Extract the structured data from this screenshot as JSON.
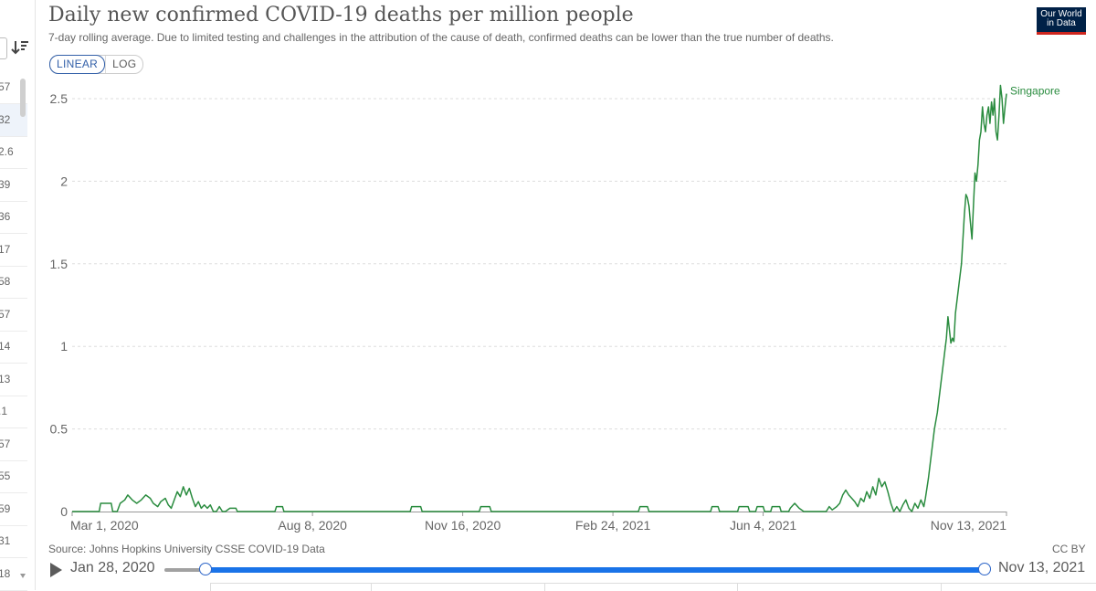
{
  "header": {
    "title": "Daily new confirmed COVID-19 deaths per million people",
    "subtitle": "7-day rolling average. Due to limited testing and challenges in the attribution of the cause of death, confirmed deaths can be lower than the true number of deaths.",
    "logo_line1": "Our World",
    "logo_line2": "in Data"
  },
  "controls": {
    "linear_label": "LINEAR",
    "log_label": "LOG"
  },
  "sidebar": {
    "values": [
      "57",
      "32",
      "2.6",
      "39",
      "36",
      "17",
      "58",
      "57",
      "14",
      "13",
      ".1",
      "57",
      "55",
      "59",
      "31",
      "18"
    ]
  },
  "footer": {
    "source": "Source: Johns Hopkins University CSSE COVID-19 Data",
    "license": "CC BY"
  },
  "timeline": {
    "start_date": "Jan 28, 2020",
    "end_date": "Nov 13, 2021"
  },
  "chart_data": {
    "type": "line",
    "ylim": [
      0,
      2.5
    ],
    "y_ticks": [
      "0",
      "0.5",
      "1",
      "1.5",
      "2",
      "2.5"
    ],
    "y_tick_values": [
      0,
      0.5,
      1,
      1.5,
      2,
      2.5
    ],
    "x_ticks": [
      "Mar 1, 2020",
      "Aug 8, 2020",
      "Nov 16, 2020",
      "Feb 24, 2021",
      "Jun 4, 2021",
      "Nov 13, 2021"
    ],
    "x_tick_days": [
      0,
      160,
      260,
      360,
      460,
      622
    ],
    "grid": true,
    "series": [
      {
        "name": "Singapore",
        "color": "#2a8c3f",
        "points": [
          [
            0,
            0
          ],
          [
            18,
            0
          ],
          [
            19,
            0.05
          ],
          [
            26,
            0.05
          ],
          [
            27,
            0
          ],
          [
            30,
            0
          ],
          [
            32,
            0.05
          ],
          [
            35,
            0.07
          ],
          [
            37,
            0.1
          ],
          [
            40,
            0.07
          ],
          [
            43,
            0.05
          ],
          [
            46,
            0.07
          ],
          [
            49,
            0.1
          ],
          [
            52,
            0.08
          ],
          [
            54,
            0.05
          ],
          [
            57,
            0.03
          ],
          [
            59,
            0.06
          ],
          [
            62,
            0.08
          ],
          [
            64,
            0.04
          ],
          [
            66,
            0.02
          ],
          [
            68,
            0.07
          ],
          [
            70,
            0.12
          ],
          [
            72,
            0.09
          ],
          [
            74,
            0.15
          ],
          [
            76,
            0.1
          ],
          [
            78,
            0.14
          ],
          [
            80,
            0.08
          ],
          [
            82,
            0.03
          ],
          [
            84,
            0.06
          ],
          [
            86,
            0.02
          ],
          [
            88,
            0.04
          ],
          [
            90,
            0.02
          ],
          [
            92,
            0.04
          ],
          [
            94,
            0
          ],
          [
            96,
            0
          ],
          [
            98,
            0.03
          ],
          [
            100,
            0
          ],
          [
            102,
            0
          ],
          [
            105,
            0.02
          ],
          [
            109,
            0.02
          ],
          [
            110,
            0
          ],
          [
            135,
            0
          ],
          [
            136,
            0.03
          ],
          [
            140,
            0.03
          ],
          [
            141,
            0
          ],
          [
            225,
            0
          ],
          [
            226,
            0.03
          ],
          [
            232,
            0.03
          ],
          [
            233,
            0
          ],
          [
            271,
            0
          ],
          [
            272,
            0.03
          ],
          [
            278,
            0.03
          ],
          [
            279,
            0
          ],
          [
            377,
            0
          ],
          [
            378,
            0.03
          ],
          [
            383,
            0.03
          ],
          [
            384,
            0
          ],
          [
            425,
            0
          ],
          [
            426,
            0.03
          ],
          [
            430,
            0.03
          ],
          [
            431,
            0
          ],
          [
            443,
            0
          ],
          [
            444,
            0.03
          ],
          [
            450,
            0.03
          ],
          [
            451,
            0
          ],
          [
            455,
            0
          ],
          [
            456,
            0.03
          ],
          [
            460,
            0.03
          ],
          [
            461,
            0
          ],
          [
            465,
            0
          ],
          [
            466,
            0.03
          ],
          [
            471,
            0.03
          ],
          [
            472,
            0
          ],
          [
            477,
            0
          ],
          [
            478,
            0.02
          ],
          [
            481,
            0.05
          ],
          [
            484,
            0.02
          ],
          [
            487,
            0
          ],
          [
            502,
            0
          ],
          [
            504,
            0.03
          ],
          [
            506,
            0.01
          ],
          [
            509,
            0.03
          ],
          [
            511,
            0.05
          ],
          [
            513,
            0.1
          ],
          [
            515,
            0.13
          ],
          [
            517,
            0.1
          ],
          [
            519,
            0.08
          ],
          [
            521,
            0.06
          ],
          [
            523,
            0.03
          ],
          [
            525,
            0.08
          ],
          [
            527,
            0.06
          ],
          [
            529,
            0.12
          ],
          [
            531,
            0.08
          ],
          [
            533,
            0.15
          ],
          [
            535,
            0.1
          ],
          [
            537,
            0.2
          ],
          [
            539,
            0.15
          ],
          [
            541,
            0.18
          ],
          [
            543,
            0.12
          ],
          [
            545,
            0.05
          ],
          [
            547,
            0
          ],
          [
            549,
            0.03
          ],
          [
            551,
            0
          ],
          [
            553,
            0.04
          ],
          [
            555,
            0.07
          ],
          [
            557,
            0.02
          ],
          [
            559,
            0
          ],
          [
            561,
            0.05
          ],
          [
            563,
            0.02
          ],
          [
            565,
            0.07
          ],
          [
            567,
            0.03
          ],
          [
            568,
            0.08
          ],
          [
            570,
            0.2
          ],
          [
            572,
            0.35
          ],
          [
            574,
            0.5
          ],
          [
            576,
            0.6
          ],
          [
            578,
            0.75
          ],
          [
            580,
            0.9
          ],
          [
            582,
            1.05
          ],
          [
            583,
            1.18
          ],
          [
            584,
            1.1
          ],
          [
            585,
            1.02
          ],
          [
            586,
            1.05
          ],
          [
            587,
            1.03
          ],
          [
            588,
            1.2
          ],
          [
            590,
            1.35
          ],
          [
            592,
            1.5
          ],
          [
            593,
            1.65
          ],
          [
            594,
            1.8
          ],
          [
            595,
            1.92
          ],
          [
            596,
            1.9
          ],
          [
            597,
            1.85
          ],
          [
            598,
            1.75
          ],
          [
            599,
            1.65
          ],
          [
            600,
            1.85
          ],
          [
            601,
            2.05
          ],
          [
            602,
            2.0
          ],
          [
            603,
            2.1
          ],
          [
            604,
            2.25
          ],
          [
            605,
            2.3
          ],
          [
            606,
            2.45
          ],
          [
            607,
            2.35
          ],
          [
            608,
            2.3
          ],
          [
            609,
            2.4
          ],
          [
            610,
            2.45
          ],
          [
            611,
            2.35
          ],
          [
            612,
            2.48
          ],
          [
            613,
            2.4
          ],
          [
            614,
            2.5
          ],
          [
            615,
            2.3
          ],
          [
            616,
            2.25
          ],
          [
            617,
            2.4
          ],
          [
            618,
            2.58
          ],
          [
            619,
            2.5
          ],
          [
            620,
            2.35
          ],
          [
            621,
            2.45
          ],
          [
            622,
            2.53
          ]
        ]
      }
    ]
  }
}
